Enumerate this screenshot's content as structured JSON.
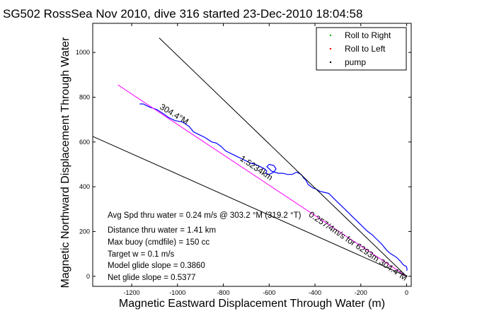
{
  "chart_data": {
    "type": "line",
    "title": "SG502 RossSea Nov 2010, dive 316 started 23-Dec-2010 18:04:58",
    "xlabel": "Magnetic Eastward Displacement Through Water (m)",
    "ylabel": "Magnetic Northward Displacement Through Water",
    "xlim": [
      -1370,
      20
    ],
    "ylim": [
      -45,
      1130
    ],
    "xticks": [
      -1200,
      -1000,
      -800,
      -600,
      -400,
      -200,
      0
    ],
    "yticks": [
      0,
      200,
      400,
      600,
      800,
      1000
    ],
    "grid": false,
    "legend_position": "top-right",
    "legend": [
      {
        "label": "Roll to Right",
        "color": "#00bb00",
        "marker": "dot"
      },
      {
        "label": "Roll to Left",
        "color": "#ff0000",
        "marker": "dot"
      },
      {
        "label": "pump",
        "color": "#000000",
        "marker": "dot"
      }
    ],
    "series": [
      {
        "color": "#0000ff",
        "style": "track",
        "x": [
          -1165,
          -1150,
          -1120,
          -1090,
          -1060,
          -1040,
          -1010,
          -980,
          -950,
          -930,
          -900,
          -880,
          -850,
          -830,
          -810,
          -790,
          -760,
          -740,
          -720,
          -700,
          -680,
          -660,
          -640,
          -620,
          -610,
          -615,
          -600,
          -580,
          -570,
          -580,
          -600,
          -610,
          -590,
          -560,
          -540,
          -520,
          -500,
          -480,
          -460,
          -450,
          -440,
          -430,
          -410,
          -395,
          -380,
          -360,
          -340,
          -320,
          -300,
          -280,
          -260,
          -240,
          -220,
          -200,
          -185,
          -170,
          -150,
          -130,
          -110,
          -90,
          -75,
          -60,
          -45,
          -35,
          -25,
          -18,
          -10,
          -3,
          0,
          2,
          0
        ],
        "y": [
          770,
          770,
          755,
          745,
          725,
          710,
          695,
          690,
          670,
          645,
          630,
          620,
          600,
          595,
          580,
          560,
          545,
          535,
          525,
          515,
          505,
          500,
          490,
          480,
          470,
          460,
          455,
          465,
          480,
          495,
          500,
          490,
          470,
          460,
          460,
          455,
          455,
          465,
          455,
          440,
          430,
          410,
          395,
          390,
          380,
          375,
          370,
          350,
          330,
          310,
          290,
          270,
          250,
          230,
          215,
          200,
          185,
          165,
          145,
          120,
          105,
          95,
          85,
          75,
          65,
          55,
          48,
          45,
          40,
          30,
          25
        ]
      },
      {
        "color": "#ff00ff",
        "style": "straight",
        "x": [
          -1260,
          0
        ],
        "y": [
          855,
          0
        ]
      },
      {
        "color": "#000000",
        "style": "line",
        "x": [
          -1080,
          0
        ],
        "y": [
          1065,
          0
        ]
      },
      {
        "color": "#000000",
        "style": "line",
        "x": [
          -1370,
          0
        ],
        "y": [
          625,
          0
        ]
      }
    ],
    "annotations": [
      {
        "text": "304.4°M",
        "x": -1080,
        "y": 750,
        "angle_deg": 31
      },
      {
        "text": "1.5234km",
        "x": -730,
        "y": 520,
        "angle_deg": 34
      },
      {
        "text": "0.257/4m/s for 6293m 304.4°M",
        "x": -430,
        "y": 270,
        "angle_deg": 34
      }
    ],
    "stats": [
      "Avg Spd thru water =  0.24 m/s @ 303.2 °M (319.2 °T)",
      "Distance thru water =  1.41 km",
      "Max buoy (cmdfile) = 150 cc",
      "Target w = 0.1 m/s",
      "Model glide slope = 0.3860",
      "Net glide slope = 0.5377"
    ]
  }
}
